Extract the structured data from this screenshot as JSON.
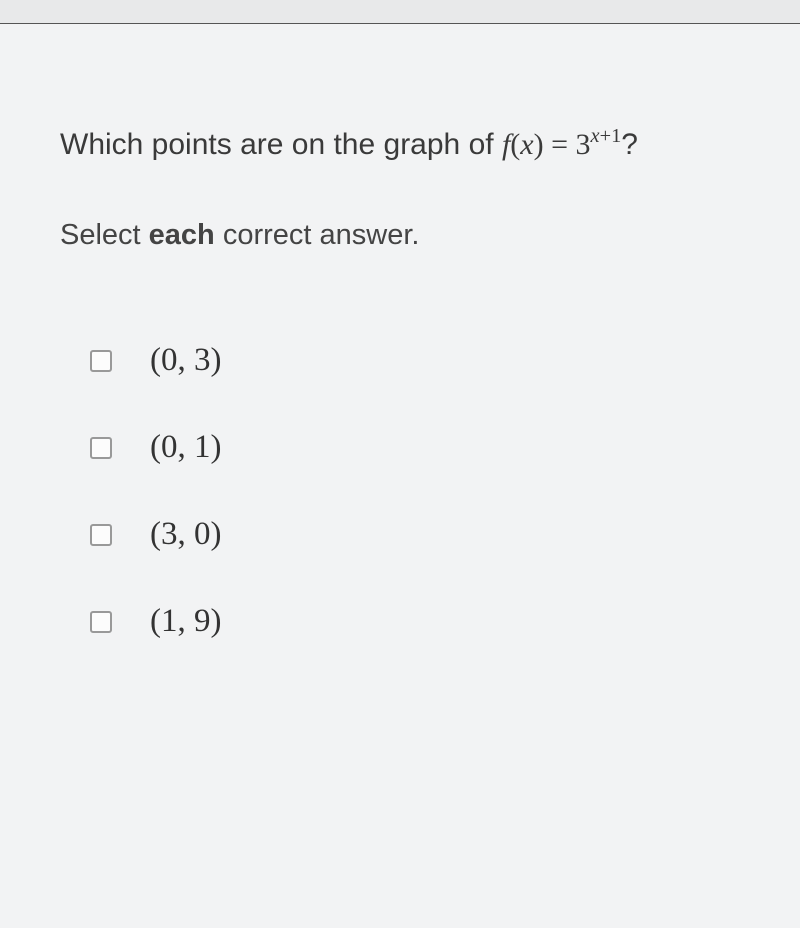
{
  "question": {
    "prefix": "Which points are on the graph of ",
    "func_letter": "f",
    "open_paren": "(",
    "var": "x",
    "close_paren": ")",
    "equals": " = ",
    "base": "3",
    "exp_var": "x",
    "exp_plus": "+",
    "exp_one": "1",
    "qmark": "?"
  },
  "instruction": {
    "pre": "Select ",
    "bold": "each",
    "post": " correct answer."
  },
  "options": [
    {
      "label": "(0, 3)"
    },
    {
      "label": "(0, 1)"
    },
    {
      "label": "(3, 0)"
    },
    {
      "label": "(1, 9)"
    }
  ],
  "colors": {
    "background": "#f2f3f4",
    "topbar": "#e8e9ea",
    "text_primary": "#3a3a3a",
    "text_secondary": "#444",
    "checkbox_border": "#999999"
  }
}
